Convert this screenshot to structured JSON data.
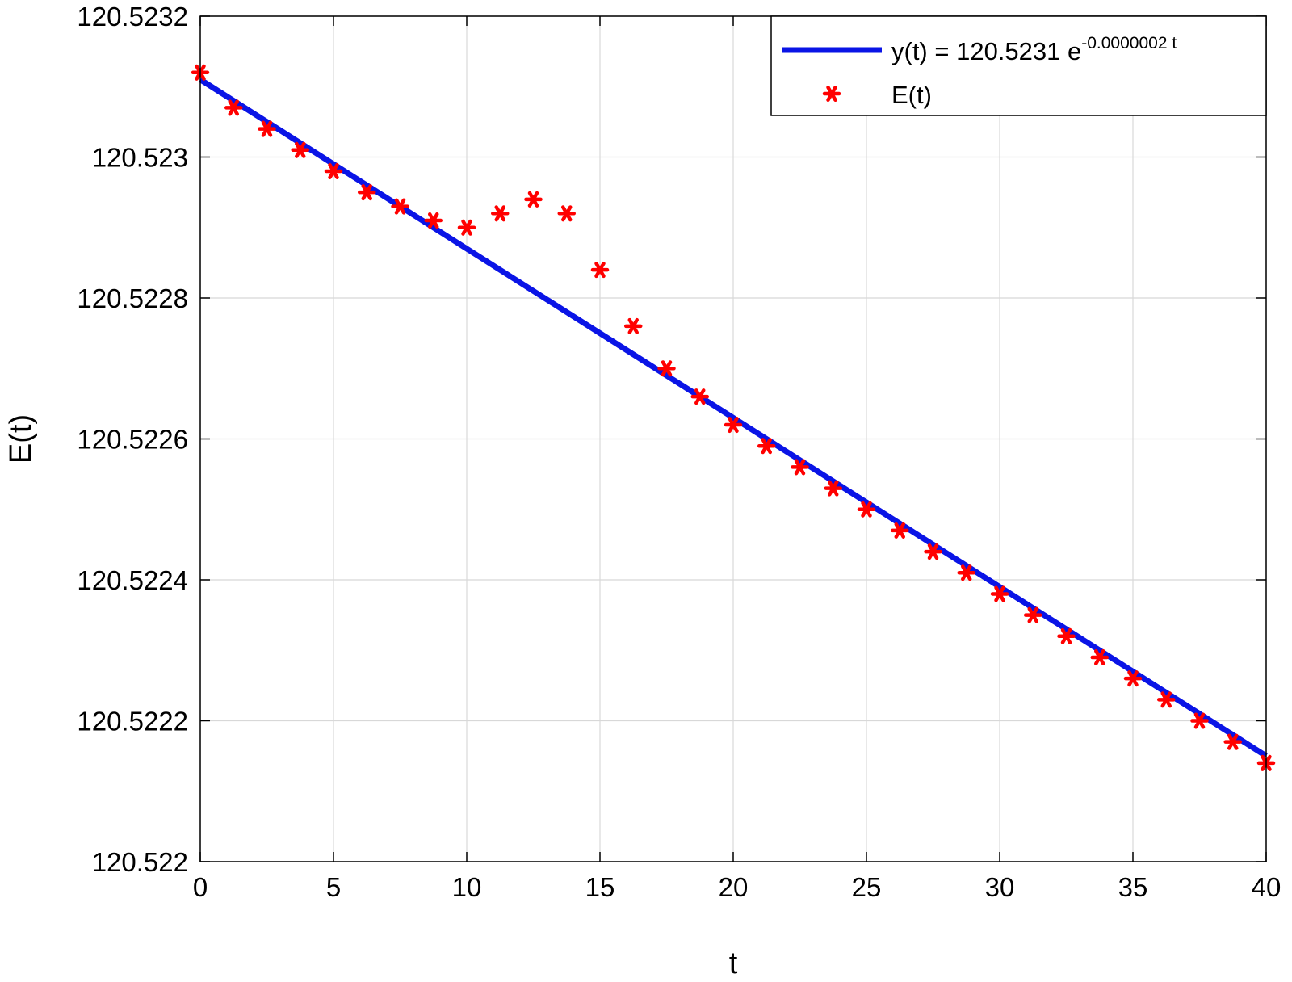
{
  "chart_data": {
    "type": "scatter",
    "title": "",
    "xlabel": "t",
    "ylabel": "E(t)",
    "xlim": [
      0,
      40
    ],
    "ylim": [
      120.522,
      120.5232
    ],
    "xticks": [
      0,
      5,
      10,
      15,
      20,
      25,
      30,
      35,
      40
    ],
    "xtick_labels": [
      "0",
      "5",
      "10",
      "15",
      "20",
      "25",
      "30",
      "35",
      "40"
    ],
    "yticks": [
      120.522,
      120.5222,
      120.5224,
      120.5226,
      120.5228,
      120.523,
      120.5232
    ],
    "ytick_labels": [
      "120.522",
      "120.5222",
      "120.5224",
      "120.5226",
      "120.5228",
      "120.523",
      "120.5232"
    ],
    "grid": true,
    "legend_position": "top-right",
    "series": [
      {
        "name": "y(t) = 120.5231 e^(-0.0000002 t)",
        "kind": "line",
        "color": "#0a14e6",
        "legend_main": "y(t) = 120.5231 e",
        "legend_sup": "-0.0000002 t",
        "x": [
          0,
          40
        ],
        "y": [
          120.52311,
          120.52215
        ]
      },
      {
        "name": "E(t)",
        "kind": "scatter",
        "marker": "asterisk",
        "color": "#ff0000",
        "legend_label": "E(t)",
        "x": [
          0,
          1.25,
          2.5,
          3.75,
          5,
          6.25,
          7.5,
          8.75,
          10,
          11.25,
          12.5,
          13.75,
          15,
          16.25,
          17.5,
          18.75,
          20,
          21.25,
          22.5,
          23.75,
          25,
          26.25,
          27.5,
          28.75,
          30,
          31.25,
          32.5,
          33.75,
          35,
          36.25,
          37.5,
          38.75,
          40
        ],
        "y": [
          120.52312,
          120.52307,
          120.52304,
          120.52301,
          120.52298,
          120.52295,
          120.52293,
          120.52291,
          120.5229,
          120.52292,
          120.52294,
          120.52292,
          120.52284,
          120.52276,
          120.5227,
          120.52266,
          120.52262,
          120.52259,
          120.52256,
          120.52253,
          120.5225,
          120.52247,
          120.52244,
          120.52241,
          120.52238,
          120.52235,
          120.52232,
          120.52229,
          120.52226,
          120.52223,
          120.5222,
          120.52217,
          120.52214
        ]
      }
    ]
  },
  "colors": {
    "line": "#0a14e6",
    "marker": "#ff0000",
    "grid": "#d8d8d8",
    "axis": "#000000"
  }
}
